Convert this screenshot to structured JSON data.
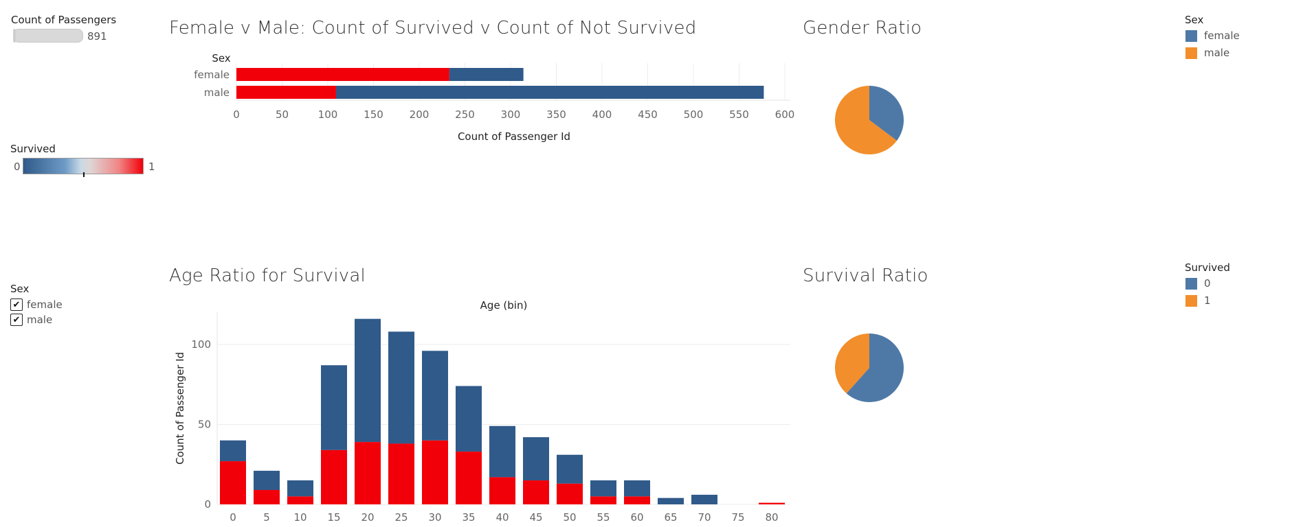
{
  "count_filter": {
    "title": "Count of Passengers",
    "value": "891"
  },
  "survived_scale": {
    "title": "Survived",
    "min_label": "0",
    "max_label": "1",
    "low_color": "#2f5a8a",
    "mid_color": "#d9d9d9",
    "high_color": "#f2000a"
  },
  "sex_filter": {
    "title": "Sex",
    "options": [
      {
        "label": "female",
        "checked": true
      },
      {
        "label": "male",
        "checked": true
      }
    ]
  },
  "sex_legend": {
    "title": "Sex",
    "items": [
      {
        "label": "female",
        "color": "#4e79a7"
      },
      {
        "label": "male",
        "color": "#f28e2b"
      }
    ]
  },
  "survived_legend": {
    "title": "Survived",
    "items": [
      {
        "label": "0",
        "color": "#4e79a7"
      },
      {
        "label": "1",
        "color": "#f28e2b"
      }
    ]
  },
  "colors": {
    "survived": "#f2000a",
    "not_survived": "#2f5a8a",
    "grid": "#ececec"
  },
  "chart_data": [
    {
      "id": "sex_bar",
      "type": "bar",
      "orientation": "horizontal",
      "stacked": true,
      "title": "Female v Male: Count of  Survived v Count of Not Survived",
      "row_header": "Sex",
      "categories": [
        "female",
        "male"
      ],
      "series": [
        {
          "name": "1",
          "values": [
            233,
            109
          ],
          "color": "#f2000a"
        },
        {
          "name": "0",
          "values": [
            81,
            468
          ],
          "color": "#2f5a8a"
        }
      ],
      "xlabel": "Count of Passenger Id",
      "xticks": [
        0,
        50,
        100,
        150,
        200,
        250,
        300,
        350,
        400,
        450,
        500,
        550,
        600
      ],
      "xlim": [
        0,
        600
      ]
    },
    {
      "id": "gender_pie",
      "type": "pie",
      "title": "Gender Ratio",
      "labels": [
        "female",
        "male"
      ],
      "values": [
        314,
        577
      ],
      "colors": [
        "#4e79a7",
        "#f28e2b"
      ]
    },
    {
      "id": "survival_pie",
      "type": "pie",
      "title": "Survival Ratio",
      "labels": [
        "0",
        "1"
      ],
      "values": [
        549,
        342
      ],
      "colors": [
        "#4e79a7",
        "#f28e2b"
      ]
    },
    {
      "id": "age_bar",
      "type": "bar",
      "stacked": true,
      "title": "Age Ratio for Survival",
      "column_header": "Age (bin)",
      "categories": [
        "0",
        "5",
        "10",
        "15",
        "20",
        "25",
        "30",
        "35",
        "40",
        "45",
        "50",
        "55",
        "60",
        "65",
        "70",
        "75",
        "80"
      ],
      "series": [
        {
          "name": "1",
          "values": [
            27,
            9,
            5,
            34,
            39,
            38,
            40,
            33,
            17,
            15,
            13,
            5,
            5,
            0,
            0,
            0,
            1
          ],
          "color": "#f2000a"
        },
        {
          "name": "0",
          "values": [
            13,
            12,
            10,
            53,
            77,
            70,
            56,
            41,
            32,
            27,
            18,
            10,
            10,
            4,
            6,
            0,
            0
          ],
          "color": "#2f5a8a"
        }
      ],
      "ylabel": "Count of Passenger Id",
      "yticks": [
        0,
        50,
        100
      ],
      "ylim": [
        0,
        118
      ]
    }
  ]
}
